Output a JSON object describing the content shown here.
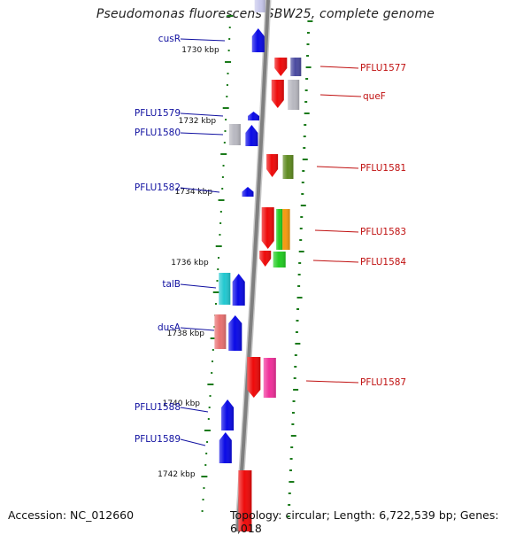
{
  "title": "Pseudomonas fluorescens SBW25, complete genome",
  "footer": {
    "accession": "Accession: NC_012660",
    "summary": "Topology: circular; Length: 6,722,539 bp; Genes: 6,018"
  },
  "colors": {
    "backbone": "#808080",
    "tick": "#1a7a1a",
    "label_left": "#1010a0",
    "label_right": "#c01010",
    "ruler_text": "#111111"
  },
  "kbp_labels": [
    "1730 kbp",
    "1732 kbp",
    "1734 kbp",
    "1736 kbp",
    "1738 kbp",
    "1740 kbp",
    "1742 kbp"
  ],
  "left_genes": [
    "cusR",
    "PFLU1579",
    "PFLU1580",
    "PFLU1582",
    "talB",
    "dusA",
    "PFLU1588",
    "PFLU1589"
  ],
  "right_genes": [
    "PFLU1577",
    "queF",
    "PFLU1581",
    "PFLU1583",
    "PFLU1584",
    "PFLU1587"
  ],
  "feature_colors": {
    "forward": "#0a0ae6",
    "reverse": "#ee0a0a",
    "grey": "#b8b8c0",
    "navy": "#4a4aa0",
    "olive": "#5e8a20",
    "orange": "#f59a10",
    "green": "#22cc22",
    "cyan": "#22c8d0",
    "salmon": "#e87070",
    "pink": "#f0309a",
    "lavender": "#c8c8ec"
  }
}
